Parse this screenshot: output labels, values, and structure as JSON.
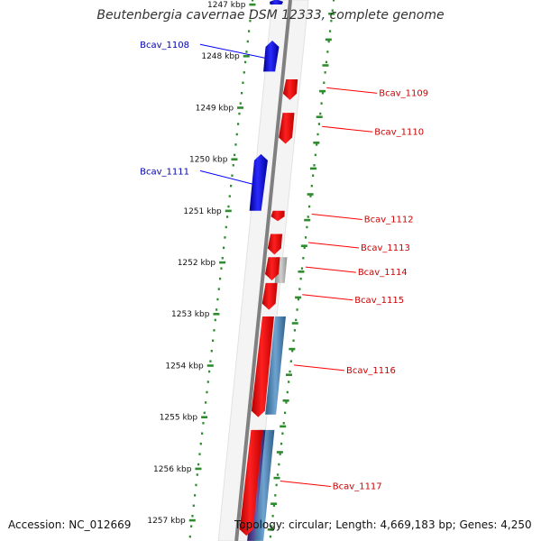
{
  "title": "Beutenbergia cavernae DSM 12333, complete genome",
  "accession": "Accession: NC_012669",
  "summary": "Topology: circular; Length: 4,669,183 bp; Genes: 4,250",
  "scale": {
    "unit": "kbp",
    "ticks": [
      {
        "label": "1247 kbp",
        "kbp": 1247
      },
      {
        "label": "1248 kbp",
        "kbp": 1248
      },
      {
        "label": "1249 kbp",
        "kbp": 1249
      },
      {
        "label": "1250 kbp",
        "kbp": 1250
      },
      {
        "label": "1251 kbp",
        "kbp": 1251
      },
      {
        "label": "1252 kbp",
        "kbp": 1252
      },
      {
        "label": "1253 kbp",
        "kbp": 1253
      },
      {
        "label": "1254 kbp",
        "kbp": 1254
      },
      {
        "label": "1255 kbp",
        "kbp": 1255
      },
      {
        "label": "1256 kbp",
        "kbp": 1256
      },
      {
        "label": "1257 kbp",
        "kbp": 1257
      }
    ]
  },
  "colors": {
    "forward": "#0000ff",
    "reverse": "#ff0000",
    "rna": "#b0b0b0",
    "feature_blue": "#4682b4",
    "feature_purple": "#483d8b",
    "scale_dots": "#2e8b2e",
    "backbone": "#808080"
  },
  "genes": [
    {
      "name": "",
      "strand": "forward",
      "start": 1246.9,
      "end": 1247.0
    },
    {
      "name": "Bcav_1108",
      "strand": "forward",
      "start": 1247.7,
      "end": 1248.3
    },
    {
      "name": "Bcav_1109",
      "strand": "reverse",
      "start": 1248.45,
      "end": 1248.85
    },
    {
      "name": "Bcav_1110",
      "strand": "reverse",
      "start": 1249.1,
      "end": 1249.7
    },
    {
      "name": "Bcav_1111",
      "strand": "forward",
      "start": 1249.9,
      "end": 1251.0
    },
    {
      "name": "Bcav_1112",
      "strand": "reverse",
      "start": 1251.0,
      "end": 1251.2
    },
    {
      "name": "Bcav_1113",
      "strand": "reverse",
      "start": 1251.45,
      "end": 1251.85
    },
    {
      "name": "Bcav_1114",
      "strand": "reverse",
      "start": 1251.9,
      "end": 1252.35
    },
    {
      "name": "Bcav_1115",
      "strand": "reverse",
      "start": 1252.4,
      "end": 1252.92
    },
    {
      "name": "Bcav_1116",
      "strand": "reverse",
      "start": 1253.05,
      "end": 1255.0
    },
    {
      "name": "Bcav_1117",
      "strand": "reverse",
      "start": 1255.25,
      "end": 1257.3
    }
  ],
  "other_features": [
    {
      "type": "rna",
      "start": 1251.9,
      "end": 1252.4
    },
    {
      "type": "feature_blue",
      "start": 1253.05,
      "end": 1254.95
    },
    {
      "type": "feature_blue",
      "start": 1255.25,
      "end": 1257.4
    },
    {
      "type": "feature_purple",
      "start": 1255.25,
      "end": 1257.4
    }
  ]
}
